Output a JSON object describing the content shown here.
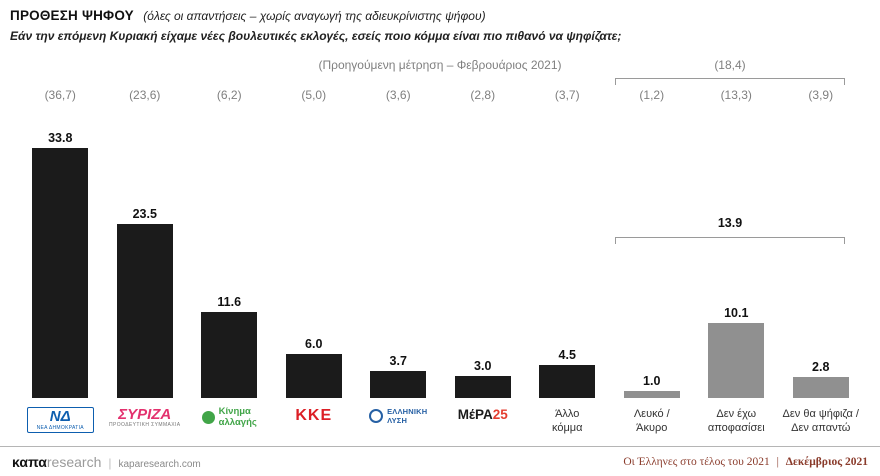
{
  "header": {
    "title": "ΠΡΟΘΕΣΗ ΨΗΦΟΥ",
    "title_note": "(όλες οι απαντήσεις – χωρίς αναγωγή της αδιευκρίνιστης ψήφου)",
    "subtitle": "Εάν την επόμενη Κυριακή είχαμε νέες βουλευτικές εκλογές, εσείς ποιο κόμμα είναι πιο πιθανό να ψηφίζατε;"
  },
  "previous": {
    "label": "(Προηγούμενη μέτρηση – Φεβρουάριος 2021)",
    "group_total": "(18,4)"
  },
  "group": {
    "current_total": "13.9"
  },
  "chart_data": {
    "type": "bar",
    "title": "ΠΡΟΘΕΣΗ ΨΗΦΟΥ (όλες οι απαντήσεις – χωρίς αναγωγή της αδιευκρίνιστης ψήφου)",
    "categories": [
      "ΝΕΑ ΔΗΜΟΚΡΑΤΙΑ",
      "ΣΥΡΙΖΑ",
      "Κίνημα αλλαγής",
      "ΚΚΕ",
      "ΕΛΛΗΝΙΚΗ ΛΥΣΗ",
      "ΜέΡΑ25",
      "Άλλο κόμμα",
      "Λευκό / Άκυρο",
      "Δεν έχω αποφασίσει",
      "Δεν θα ψήφιζα / Δεν απαντώ"
    ],
    "values": [
      33.8,
      23.5,
      11.6,
      6.0,
      3.7,
      3.0,
      4.5,
      1.0,
      10.1,
      2.8
    ],
    "previous_values": [
      36.7,
      23.6,
      6.2,
      5.0,
      3.6,
      2.8,
      3.7,
      1.2,
      13.3,
      3.9
    ],
    "previous_label": "(Προηγούμενη μέτρηση – Φεβρουάριος 2021)",
    "group_last3_current": 13.9,
    "group_last3_previous": 18.4,
    "ylim": [
      0,
      35
    ],
    "grid": false,
    "legend": false,
    "bar_colors": {
      "parties": "#1b1b1b",
      "non_vote": "#909090"
    }
  },
  "columns": [
    {
      "prev": "(36,7)",
      "value": "33.8",
      "color": "#1b1b1b"
    },
    {
      "prev": "(23,6)",
      "value": "23.5",
      "color": "#1b1b1b"
    },
    {
      "prev": "(6,2)",
      "value": "11.6",
      "color": "#1b1b1b"
    },
    {
      "prev": "(5,0)",
      "value": "6.0",
      "color": "#1b1b1b"
    },
    {
      "prev": "(3,6)",
      "value": "3.7",
      "color": "#1b1b1b"
    },
    {
      "prev": "(2,8)",
      "value": "3.0",
      "color": "#1b1b1b"
    },
    {
      "prev": "(3,7)",
      "value": "4.5",
      "color": "#1b1b1b"
    },
    {
      "prev": "(1,2)",
      "value": "1.0",
      "color": "#909090"
    },
    {
      "prev": "(13,3)",
      "value": "10.1",
      "color": "#909090"
    },
    {
      "prev": "(3,9)",
      "value": "2.8",
      "color": "#909090"
    }
  ],
  "parties": {
    "nd": {
      "abbr": "ΝΔ",
      "sub": "ΝΕΑ ΔΗΜΟΚΡΑΤΙΑ",
      "color": "#0d5eaf"
    },
    "syriza": {
      "name": "ΣΥΡΙΖΑ",
      "sub": "ΠΡΟΟΔΕΥΤΙΚΗ ΣΥΜΜΑΧΙΑ",
      "color": "#e3316e"
    },
    "kinal": {
      "line1": "Κίνημα",
      "line2": "αλλαγής",
      "color": "#41a548"
    },
    "kke": {
      "name": "ΚΚΕ",
      "color": "#dc1f26"
    },
    "elliniki_lysi": {
      "line1": "ΕΛΛΗΝΙΚΗ",
      "line2": "ΛΥΣΗ",
      "color": "#2660a4"
    },
    "mera25": {
      "name": "ΜέΡΑ",
      "num": "25",
      "color": "#1b1b1b",
      "accent": "#e43e30"
    },
    "other": {
      "line1": "Άλλο",
      "line2": "κόμμα"
    },
    "blank": {
      "line1": "Λευκό /",
      "line2": "Άκυρο"
    },
    "undecided": {
      "line1": "Δεν έχω",
      "line2": "αποφασίσει"
    },
    "no_vote": {
      "line1": "Δεν θα ψήφιζα /",
      "line2": "Δεν απαντώ"
    }
  },
  "footer": {
    "brand_bold": "καπα",
    "brand_light": "research",
    "separator": "|",
    "url": "kaparesearch.com",
    "source_title": "Οι Έλληνες στο τέλος του 2021",
    "source_sep": "|",
    "source_date": "Δεκέμβριος 2021"
  }
}
